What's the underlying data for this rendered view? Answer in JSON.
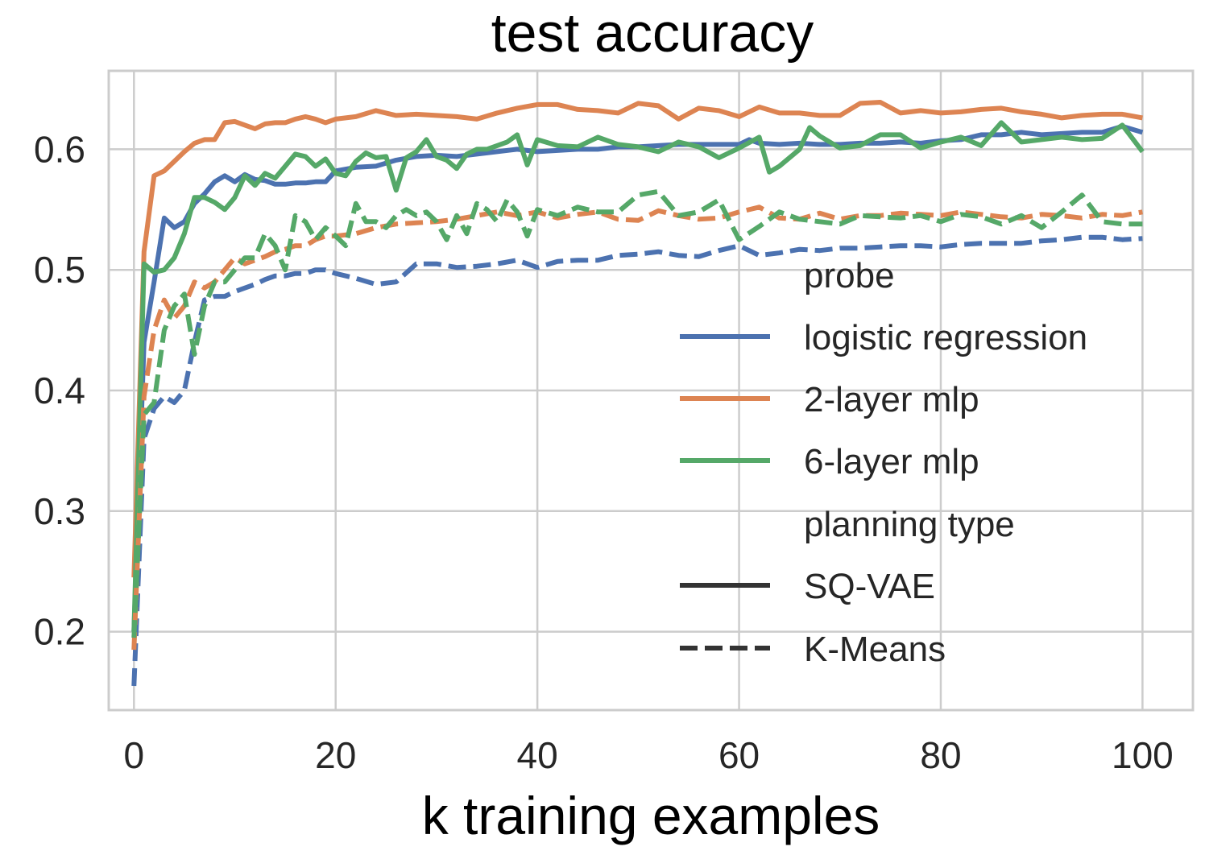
{
  "chart_data": {
    "type": "line",
    "title": "test accuracy",
    "xlabel": "k training examples",
    "ylabel": "",
    "xlim": [
      -2.5,
      105
    ],
    "ylim": [
      0.135,
      0.665
    ],
    "grid": true,
    "xticks": [
      0,
      20,
      40,
      60,
      80,
      100
    ],
    "xtick_labels": [
      "0",
      "20",
      "40",
      "60",
      "80",
      "100"
    ],
    "yticks": [
      0.2,
      0.3,
      0.4,
      0.5,
      0.6
    ],
    "ytick_labels": [
      "0.2",
      "0.3",
      "0.4",
      "0.5",
      "0.6"
    ],
    "legend": {
      "placement": "center-right",
      "probe_header": "probe",
      "probe_entries": [
        {
          "label": "logistic regression",
          "color": "#4c72b0"
        },
        {
          "label": "2-layer mlp",
          "color": "#dd8452"
        },
        {
          "label": "6-layer mlp",
          "color": "#55a868"
        }
      ],
      "planning_header": "planning type",
      "planning_entries": [
        {
          "label": "SQ-VAE",
          "style": "solid"
        },
        {
          "label": "K-Means",
          "style": "dashed"
        }
      ]
    },
    "series": [
      {
        "name": "logistic regression / SQ-VAE",
        "probe": "logistic regression",
        "planning": "SQ-VAE",
        "color": "#4c72b0",
        "style": "solid",
        "x": [
          0,
          1,
          2,
          3,
          4,
          5,
          6,
          7,
          8,
          9,
          10,
          11,
          12,
          13,
          14,
          15,
          16,
          17,
          18,
          19,
          20,
          22,
          24,
          26,
          28,
          30,
          32,
          34,
          36,
          38,
          40,
          42,
          44,
          46,
          48,
          50,
          52,
          54,
          56,
          58,
          60,
          61,
          62,
          64,
          66,
          68,
          70,
          72,
          74,
          76,
          78,
          80,
          82,
          84,
          86,
          88,
          90,
          92,
          94,
          96,
          98,
          100
        ],
        "y": [
          0.2,
          0.44,
          0.49,
          0.543,
          0.535,
          0.54,
          0.555,
          0.563,
          0.573,
          0.578,
          0.573,
          0.579,
          0.575,
          0.574,
          0.571,
          0.571,
          0.572,
          0.572,
          0.573,
          0.573,
          0.582,
          0.585,
          0.586,
          0.591,
          0.594,
          0.595,
          0.594,
          0.596,
          0.598,
          0.6,
          0.598,
          0.599,
          0.6,
          0.6,
          0.602,
          0.602,
          0.603,
          0.604,
          0.604,
          0.604,
          0.604,
          0.608,
          0.605,
          0.604,
          0.605,
          0.604,
          0.604,
          0.605,
          0.605,
          0.606,
          0.605,
          0.607,
          0.608,
          0.612,
          0.612,
          0.614,
          0.612,
          0.613,
          0.614,
          0.614,
          0.619,
          0.614
        ]
      },
      {
        "name": "2-layer mlp / SQ-VAE",
        "probe": "2-layer mlp",
        "planning": "SQ-VAE",
        "color": "#dd8452",
        "style": "solid",
        "x": [
          0,
          1,
          2,
          3,
          4,
          5,
          6,
          7,
          8,
          9,
          10,
          11,
          12,
          13,
          14,
          15,
          16,
          17,
          18,
          19,
          20,
          22,
          24,
          26,
          28,
          30,
          32,
          34,
          36,
          38,
          40,
          42,
          44,
          46,
          48,
          50,
          52,
          54,
          56,
          58,
          60,
          62,
          64,
          66,
          68,
          70,
          72,
          74,
          76,
          78,
          80,
          82,
          84,
          86,
          88,
          90,
          92,
          94,
          96,
          98,
          100
        ],
        "y": [
          0.245,
          0.515,
          0.578,
          0.582,
          0.59,
          0.598,
          0.605,
          0.608,
          0.608,
          0.622,
          0.623,
          0.62,
          0.617,
          0.621,
          0.622,
          0.622,
          0.625,
          0.627,
          0.625,
          0.622,
          0.625,
          0.627,
          0.632,
          0.628,
          0.629,
          0.628,
          0.627,
          0.625,
          0.63,
          0.634,
          0.637,
          0.637,
          0.633,
          0.632,
          0.63,
          0.638,
          0.636,
          0.625,
          0.634,
          0.632,
          0.627,
          0.635,
          0.63,
          0.63,
          0.628,
          0.628,
          0.638,
          0.639,
          0.63,
          0.632,
          0.63,
          0.631,
          0.633,
          0.634,
          0.631,
          0.629,
          0.626,
          0.628,
          0.629,
          0.629,
          0.626
        ]
      },
      {
        "name": "6-layer mlp / SQ-VAE",
        "probe": "6-layer mlp",
        "planning": "SQ-VAE",
        "color": "#55a868",
        "style": "solid",
        "x": [
          0,
          1,
          2,
          3,
          4,
          5,
          6,
          7,
          8,
          9,
          10,
          11,
          12,
          13,
          14,
          15,
          16,
          17,
          18,
          19,
          20,
          21,
          22,
          23,
          24,
          25,
          26,
          27,
          28,
          29,
          30,
          31,
          32,
          33,
          34,
          35,
          36,
          37,
          38,
          39,
          40,
          42,
          44,
          46,
          48,
          50,
          52,
          54,
          56,
          58,
          60,
          62,
          63,
          64,
          66,
          67,
          68,
          70,
          72,
          74,
          76,
          78,
          80,
          82,
          84,
          86,
          88,
          90,
          92,
          94,
          96,
          98,
          100
        ],
        "y": [
          0.2,
          0.505,
          0.498,
          0.5,
          0.51,
          0.53,
          0.56,
          0.56,
          0.556,
          0.55,
          0.56,
          0.578,
          0.57,
          0.58,
          0.576,
          0.586,
          0.596,
          0.594,
          0.586,
          0.592,
          0.58,
          0.578,
          0.59,
          0.597,
          0.593,
          0.594,
          0.566,
          0.593,
          0.598,
          0.608,
          0.594,
          0.591,
          0.584,
          0.596,
          0.6,
          0.6,
          0.603,
          0.606,
          0.612,
          0.587,
          0.608,
          0.603,
          0.602,
          0.61,
          0.604,
          0.602,
          0.598,
          0.606,
          0.602,
          0.593,
          0.601,
          0.61,
          0.581,
          0.586,
          0.6,
          0.618,
          0.611,
          0.601,
          0.603,
          0.612,
          0.612,
          0.601,
          0.606,
          0.61,
          0.603,
          0.622,
          0.606,
          0.608,
          0.61,
          0.608,
          0.609,
          0.62,
          0.598
        ]
      },
      {
        "name": "logistic regression / K-Means",
        "probe": "logistic regression",
        "planning": "K-Means",
        "color": "#4c72b0",
        "style": "dashed",
        "x": [
          0,
          1,
          2,
          3,
          4,
          5,
          6,
          7,
          8,
          9,
          10,
          11,
          12,
          13,
          14,
          15,
          16,
          17,
          18,
          19,
          20,
          22,
          24,
          26,
          28,
          30,
          32,
          34,
          36,
          38,
          40,
          42,
          44,
          46,
          48,
          50,
          52,
          54,
          56,
          58,
          60,
          62,
          64,
          66,
          68,
          70,
          72,
          74,
          76,
          78,
          80,
          82,
          84,
          86,
          88,
          90,
          92,
          94,
          96,
          98,
          100
        ],
        "y": [
          0.155,
          0.36,
          0.385,
          0.395,
          0.39,
          0.4,
          0.44,
          0.475,
          0.478,
          0.478,
          0.482,
          0.485,
          0.488,
          0.492,
          0.495,
          0.495,
          0.497,
          0.497,
          0.5,
          0.5,
          0.497,
          0.493,
          0.488,
          0.49,
          0.505,
          0.505,
          0.502,
          0.503,
          0.505,
          0.508,
          0.502,
          0.507,
          0.508,
          0.508,
          0.512,
          0.513,
          0.515,
          0.512,
          0.511,
          0.516,
          0.52,
          0.512,
          0.514,
          0.517,
          0.516,
          0.518,
          0.518,
          0.519,
          0.52,
          0.52,
          0.519,
          0.521,
          0.522,
          0.522,
          0.522,
          0.524,
          0.525,
          0.527,
          0.527,
          0.525,
          0.526
        ]
      },
      {
        "name": "2-layer mlp / K-Means",
        "probe": "2-layer mlp",
        "planning": "K-Means",
        "color": "#dd8452",
        "style": "dashed",
        "x": [
          0,
          1,
          2,
          3,
          4,
          5,
          6,
          7,
          8,
          9,
          10,
          11,
          12,
          13,
          14,
          15,
          16,
          17,
          18,
          19,
          20,
          22,
          24,
          26,
          28,
          30,
          32,
          34,
          36,
          38,
          40,
          42,
          44,
          46,
          48,
          50,
          52,
          54,
          56,
          58,
          60,
          62,
          64,
          66,
          68,
          70,
          72,
          74,
          76,
          78,
          80,
          82,
          84,
          86,
          88,
          90,
          92,
          94,
          96,
          98,
          100
        ],
        "y": [
          0.185,
          0.395,
          0.45,
          0.475,
          0.46,
          0.47,
          0.49,
          0.485,
          0.49,
          0.5,
          0.51,
          0.505,
          0.508,
          0.511,
          0.515,
          0.517,
          0.52,
          0.52,
          0.525,
          0.528,
          0.528,
          0.53,
          0.535,
          0.538,
          0.539,
          0.54,
          0.542,
          0.545,
          0.548,
          0.545,
          0.548,
          0.543,
          0.546,
          0.548,
          0.542,
          0.541,
          0.549,
          0.545,
          0.542,
          0.543,
          0.548,
          0.552,
          0.543,
          0.542,
          0.547,
          0.542,
          0.545,
          0.545,
          0.547,
          0.546,
          0.545,
          0.548,
          0.546,
          0.544,
          0.543,
          0.546,
          0.545,
          0.543,
          0.546,
          0.545,
          0.548
        ]
      },
      {
        "name": "6-layer mlp / K-Means",
        "probe": "6-layer mlp",
        "planning": "K-Means",
        "color": "#55a868",
        "style": "dashed",
        "x": [
          0,
          1,
          2,
          3,
          4,
          5,
          6,
          7,
          8,
          9,
          10,
          11,
          12,
          13,
          14,
          15,
          16,
          17,
          18,
          19,
          20,
          21,
          22,
          23,
          24,
          25,
          26,
          27,
          28,
          29,
          30,
          31,
          32,
          33,
          34,
          35,
          36,
          37,
          38,
          39,
          40,
          42,
          44,
          46,
          48,
          50,
          52,
          54,
          56,
          58,
          60,
          62,
          64,
          66,
          68,
          70,
          72,
          74,
          76,
          78,
          80,
          82,
          84,
          86,
          88,
          90,
          92,
          94,
          96,
          98,
          100
        ],
        "y": [
          0.195,
          0.38,
          0.39,
          0.45,
          0.47,
          0.48,
          0.43,
          0.47,
          0.49,
          0.49,
          0.5,
          0.51,
          0.51,
          0.53,
          0.52,
          0.5,
          0.545,
          0.54,
          0.525,
          0.535,
          0.528,
          0.52,
          0.555,
          0.54,
          0.54,
          0.535,
          0.545,
          0.55,
          0.545,
          0.548,
          0.54,
          0.525,
          0.545,
          0.53,
          0.555,
          0.55,
          0.54,
          0.558,
          0.548,
          0.528,
          0.55,
          0.545,
          0.552,
          0.548,
          0.548,
          0.562,
          0.565,
          0.545,
          0.548,
          0.558,
          0.525,
          0.536,
          0.548,
          0.542,
          0.54,
          0.538,
          0.545,
          0.544,
          0.543,
          0.545,
          0.54,
          0.546,
          0.544,
          0.538,
          0.545,
          0.535,
          0.548,
          0.562,
          0.54,
          0.538,
          0.538
        ]
      }
    ]
  }
}
